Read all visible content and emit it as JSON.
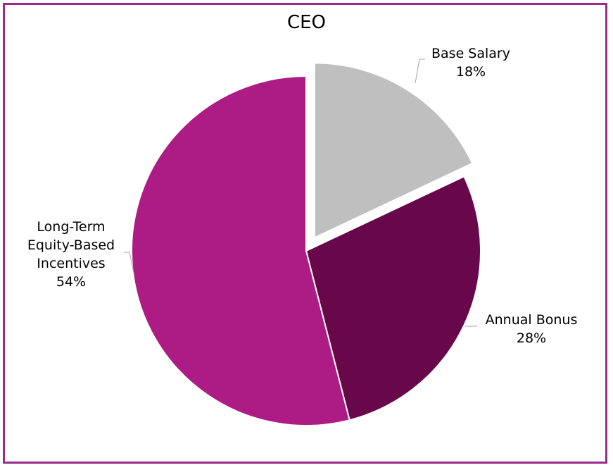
{
  "chart_data": {
    "type": "pie",
    "title": "CEO",
    "slices": [
      {
        "name": "Base Salary",
        "label_lines": [
          "Base Salary"
        ],
        "percent_label": "18%",
        "value": 18,
        "color": "#bfbfbf",
        "exploded": true
      },
      {
        "name": "Annual Bonus",
        "label_lines": [
          "Annual Bonus"
        ],
        "percent_label": "28%",
        "value": 28,
        "color": "#68074a",
        "exploded": false
      },
      {
        "name": "Long-Term Equity-Based Incentives",
        "label_lines": [
          "Long-Term",
          "Equity-Based",
          "Incentives"
        ],
        "percent_label": "54%",
        "value": 54,
        "color": "#ad1b84",
        "exploded": false
      }
    ],
    "start_angle_deg": 0,
    "direction": "clockwise",
    "legend": "none",
    "border_color": "#9b2a8a",
    "leader_line_color": "#a6a6a6"
  }
}
